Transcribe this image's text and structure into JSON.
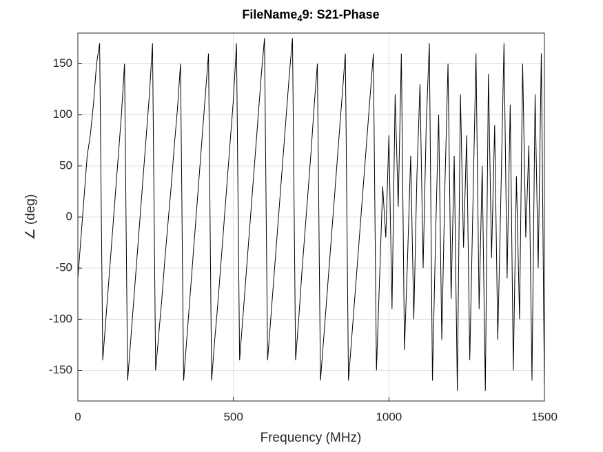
{
  "chart_data": {
    "type": "line",
    "title": [
      "FileName",
      "4",
      "9: S21-Phase"
    ],
    "xlabel": "Frequency (MHz)",
    "ylabel": "∠ (deg)",
    "xlim": [
      0,
      1500
    ],
    "xticks": [
      0,
      500,
      1000,
      1500
    ],
    "ylim": [
      -180,
      180
    ],
    "yticks": [
      -150,
      -100,
      -50,
      0,
      50,
      100,
      150
    ],
    "grid": true,
    "color": "#000000",
    "x": [
      0,
      10,
      20,
      30,
      40,
      50,
      60,
      70,
      80,
      90,
      100,
      110,
      120,
      130,
      140,
      150,
      160,
      170,
      180,
      190,
      200,
      210,
      220,
      230,
      240,
      250,
      260,
      270,
      280,
      290,
      300,
      310,
      320,
      330,
      340,
      350,
      360,
      370,
      380,
      390,
      400,
      410,
      420,
      430,
      440,
      450,
      460,
      470,
      480,
      490,
      500,
      510,
      520,
      530,
      540,
      550,
      560,
      570,
      580,
      590,
      600,
      610,
      620,
      630,
      640,
      650,
      660,
      670,
      680,
      690,
      700,
      710,
      720,
      730,
      740,
      750,
      760,
      770,
      780,
      790,
      800,
      810,
      820,
      830,
      840,
      850,
      860,
      870,
      880,
      890,
      900,
      910,
      920,
      930,
      940,
      950,
      960,
      970,
      980,
      990,
      1000,
      1010,
      1020,
      1030,
      1040,
      1050,
      1060,
      1070,
      1080,
      1090,
      1100,
      1110,
      1120,
      1130,
      1140,
      1150,
      1160,
      1170,
      1180,
      1190,
      1200,
      1210,
      1220,
      1230,
      1240,
      1250,
      1260,
      1270,
      1280,
      1290,
      1300,
      1310,
      1320,
      1330,
      1340,
      1350,
      1360,
      1370,
      1380,
      1390,
      1400,
      1410,
      1420,
      1430,
      1440,
      1450,
      1460,
      1470,
      1480,
      1490,
      1500
    ],
    "values": [
      -60,
      -20,
      20,
      60,
      80,
      110,
      150,
      170,
      -140,
      -100,
      -60,
      -20,
      20,
      60,
      100,
      150,
      -160,
      -120,
      -80,
      -40,
      0,
      40,
      80,
      120,
      170,
      -150,
      -115,
      -80,
      -40,
      -5,
      30,
      70,
      105,
      150,
      -160,
      -120,
      -80,
      -40,
      0,
      40,
      80,
      120,
      160,
      -160,
      -120,
      -85,
      -45,
      -5,
      35,
      75,
      115,
      170,
      -140,
      -100,
      -60,
      -20,
      20,
      60,
      100,
      140,
      175,
      -140,
      -100,
      -60,
      -20,
      20,
      60,
      100,
      140,
      175,
      -140,
      -100,
      -55,
      -15,
      25,
      65,
      110,
      150,
      -160,
      -120,
      -80,
      -40,
      0,
      40,
      80,
      120,
      160,
      -160,
      -120,
      -80,
      -40,
      0,
      40,
      80,
      120,
      160,
      -150,
      -60,
      30,
      -20,
      80,
      -90,
      120,
      10,
      160,
      -130,
      -40,
      60,
      -100,
      40,
      130,
      -50,
      90,
      170,
      -160,
      -20,
      100,
      -120,
      30,
      150,
      -80,
      60,
      -170,
      120,
      -30,
      80,
      -140,
      10,
      160,
      -90,
      50,
      -170,
      140,
      -40,
      90,
      -120,
      20,
      170,
      -60,
      110,
      -150,
      40,
      -100,
      150,
      -20,
      70,
      -160,
      120,
      -50,
      160,
      -170
    ]
  }
}
